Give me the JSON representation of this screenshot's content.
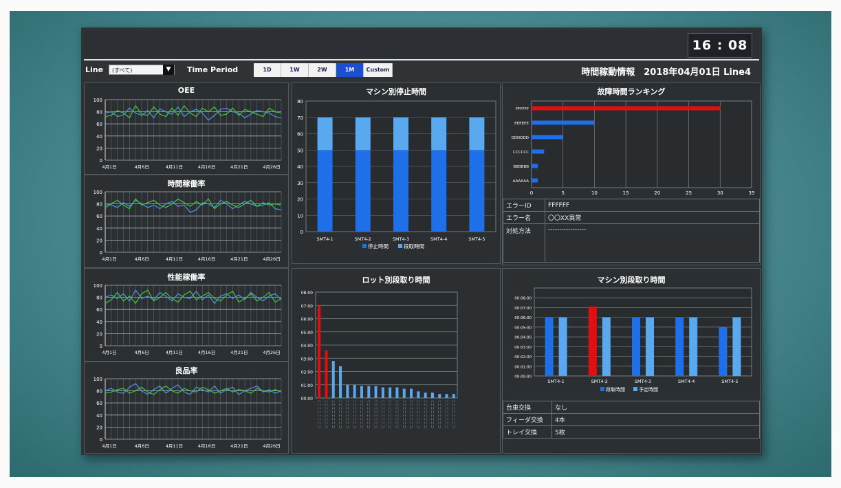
{
  "header": {
    "clock": "16 : 08",
    "page_heading": "時間稼動情報　2018年04月01日 Line4"
  },
  "toolbar": {
    "line_label": "Line",
    "line_value": "(すべて)",
    "time_period_label": "Time Period",
    "periods": [
      "1D",
      "1W",
      "2W",
      "1M",
      "Custom"
    ],
    "active_period": "1M"
  },
  "colors": {
    "series_green": "#3fbf3f",
    "series_blue": "#4f8fe0",
    "bar_dark_blue": "#1f6fe8",
    "bar_light_blue": "#5aa8ee",
    "bar_red": "#e01010"
  },
  "left_charts": [
    {
      "title": "OEE",
      "type": "line",
      "ylim": [
        0,
        100
      ],
      "yticks": [
        "0",
        "20",
        "40",
        "60",
        "80",
        "100"
      ],
      "xticks": [
        "4月1日",
        "4月6日",
        "4月11日",
        "4月16日",
        "4月21日",
        "4月26日"
      ],
      "series": [
        {
          "values": [
            78,
            80,
            72,
            75,
            86,
            78,
            74,
            82,
            70,
            85,
            80,
            76,
            88,
            72,
            80,
            84,
            78,
            66,
            74,
            84,
            86,
            80,
            78,
            70,
            76,
            82,
            80,
            78,
            72,
            70
          ]
        },
        {
          "values": [
            72,
            74,
            82,
            78,
            70,
            90,
            76,
            74,
            88,
            76,
            72,
            86,
            74,
            90,
            78,
            72,
            86,
            80,
            88,
            74,
            76,
            86,
            74,
            84,
            80,
            76,
            72,
            86,
            80,
            78
          ]
        }
      ]
    },
    {
      "title": "時間稼働率",
      "type": "line",
      "ylim": [
        0,
        100
      ],
      "yticks": [
        "0",
        "20",
        "40",
        "60",
        "80",
        "100"
      ],
      "xticks": [
        "4月1日",
        "4月6日",
        "4月11日",
        "4月16日",
        "4月21日",
        "4月26日"
      ],
      "series": [
        {
          "values": [
            80,
            78,
            74,
            82,
            76,
            86,
            80,
            74,
            78,
            72,
            80,
            84,
            76,
            78,
            66,
            70,
            82,
            80,
            74,
            86,
            80,
            72,
            78,
            84,
            80,
            76,
            78,
            82,
            72,
            70
          ]
        },
        {
          "values": [
            74,
            80,
            86,
            78,
            72,
            88,
            78,
            82,
            86,
            78,
            74,
            80,
            88,
            82,
            76,
            84,
            78,
            88,
            72,
            80,
            84,
            78,
            74,
            80,
            86,
            76,
            82,
            78,
            80,
            78
          ]
        }
      ]
    },
    {
      "title": "性能稼働率",
      "type": "line",
      "ylim": [
        0,
        100
      ],
      "yticks": [
        "0",
        "20",
        "40",
        "60",
        "80",
        "100"
      ],
      "xticks": [
        "4月1日",
        "4月6日",
        "4月11日",
        "4月16日",
        "4月21日",
        "4月26日"
      ],
      "series": [
        {
          "values": [
            80,
            84,
            78,
            86,
            74,
            92,
            78,
            82,
            76,
            88,
            82,
            74,
            86,
            80,
            78,
            90,
            76,
            84,
            70,
            82,
            86,
            78,
            84,
            76,
            88,
            80,
            74,
            82,
            86,
            76
          ]
        },
        {
          "values": [
            70,
            76,
            88,
            74,
            82,
            70,
            86,
            92,
            74,
            80,
            88,
            78,
            72,
            84,
            90,
            76,
            82,
            88,
            78,
            74,
            84,
            90,
            72,
            78,
            86,
            74,
            80,
            88,
            72,
            78
          ]
        }
      ]
    },
    {
      "title": "良品率",
      "type": "line",
      "ylim": [
        0,
        100
      ],
      "yticks": [
        "0",
        "20",
        "40",
        "60",
        "80",
        "100"
      ],
      "xticks": [
        "4月1日",
        "4月6日",
        "4月11日",
        "4月16日",
        "4月21日",
        "4月26日"
      ],
      "series": [
        {
          "values": [
            80,
            84,
            78,
            76,
            86,
            92,
            80,
            74,
            82,
            88,
            76,
            84,
            90,
            78,
            74,
            86,
            82,
            78,
            88,
            76,
            82,
            86,
            74,
            80,
            84,
            88,
            78,
            82,
            76,
            80
          ]
        },
        {
          "values": [
            76,
            78,
            82,
            84,
            76,
            80,
            86,
            78,
            74,
            82,
            88,
            80,
            76,
            84,
            80,
            78,
            86,
            82,
            76,
            80,
            84,
            78,
            82,
            80,
            76,
            84,
            80,
            78,
            82,
            78
          ]
        }
      ]
    }
  ],
  "chart_data": [
    {
      "title": "マシン別停止時間",
      "type": "bar",
      "stacked": true,
      "categories": [
        "SMT4-1",
        "SMT4-2",
        "SMT4-3",
        "SMT4-4",
        "SMT4-5"
      ],
      "ylim": [
        0,
        80
      ],
      "yticks": [
        "0",
        "10",
        "20",
        "30",
        "40",
        "50",
        "60",
        "70",
        "80"
      ],
      "series": [
        {
          "name": "停止時間",
          "values": [
            50,
            50,
            50,
            50,
            50
          ]
        },
        {
          "name": "段取時間",
          "values": [
            20,
            20,
            20,
            20,
            20
          ]
        }
      ]
    },
    {
      "title": "故障時間ランキング",
      "type": "bar",
      "orientation": "horizontal",
      "categories": [
        "FFFFFF",
        "EEEEEE",
        "DDDDDD",
        "CCCCCC",
        "BBBBBB",
        "AAAAAA"
      ],
      "values": [
        30,
        10,
        5,
        2,
        1,
        1
      ],
      "xlim": [
        0,
        35
      ],
      "xticks": [
        "0",
        "5",
        "10",
        "15",
        "20",
        "25",
        "30",
        "35"
      ]
    },
    {
      "title": "ロット別段取り時間",
      "type": "bar",
      "ylim": [
        0,
        8
      ],
      "yticks": [
        "00:00",
        "01:00",
        "02:00",
        "03:00",
        "04:00",
        "05:00",
        "06:00",
        "07:00",
        "08:00"
      ],
      "categories": [
        "",
        "",
        "",
        "",
        "",
        "",
        "",
        "",
        "",
        "",
        "",
        "",
        "",
        "",
        "",
        "",
        "",
        "",
        "",
        ""
      ],
      "values": [
        7.0,
        3.6,
        2.8,
        2.4,
        1.0,
        1.0,
        0.9,
        0.9,
        0.9,
        0.8,
        0.8,
        0.8,
        0.7,
        0.7,
        0.5,
        0.4,
        0.4,
        0.3,
        0.3,
        0.3
      ],
      "highlight": [
        0,
        1
      ]
    },
    {
      "title": "マシン別段取り時間",
      "type": "bar",
      "categories": [
        "SMT4-1",
        "SMT4-2",
        "SMT4-3",
        "SMT4-4",
        "SMT4-5"
      ],
      "ylim": [
        0,
        9
      ],
      "yticks": [
        "00:00:00",
        "00:01:00",
        "00:02:00",
        "00:03:00",
        "00:04:00",
        "00:05:00",
        "00:06:00",
        "00:07:00",
        "00:08:00"
      ],
      "series": [
        {
          "name": "段取時間",
          "values": [
            6,
            7.1,
            6,
            6,
            5
          ]
        },
        {
          "name": "予定時間",
          "values": [
            6,
            6,
            6,
            6,
            6
          ]
        }
      ],
      "highlight_index": 1
    }
  ],
  "error_detail": {
    "rows": [
      {
        "label": "エラーID",
        "value": "FFFFFF"
      },
      {
        "label": "エラー名",
        "value": "〇〇XX異常"
      },
      {
        "label": "対処方法",
        "value": "-----------------"
      }
    ]
  },
  "setup_detail": {
    "rows": [
      {
        "label": "台車交換",
        "value": "なし"
      },
      {
        "label": "フィーダ交換",
        "value": "4本"
      },
      {
        "label": "トレイ交換",
        "value": "5枚"
      }
    ]
  }
}
